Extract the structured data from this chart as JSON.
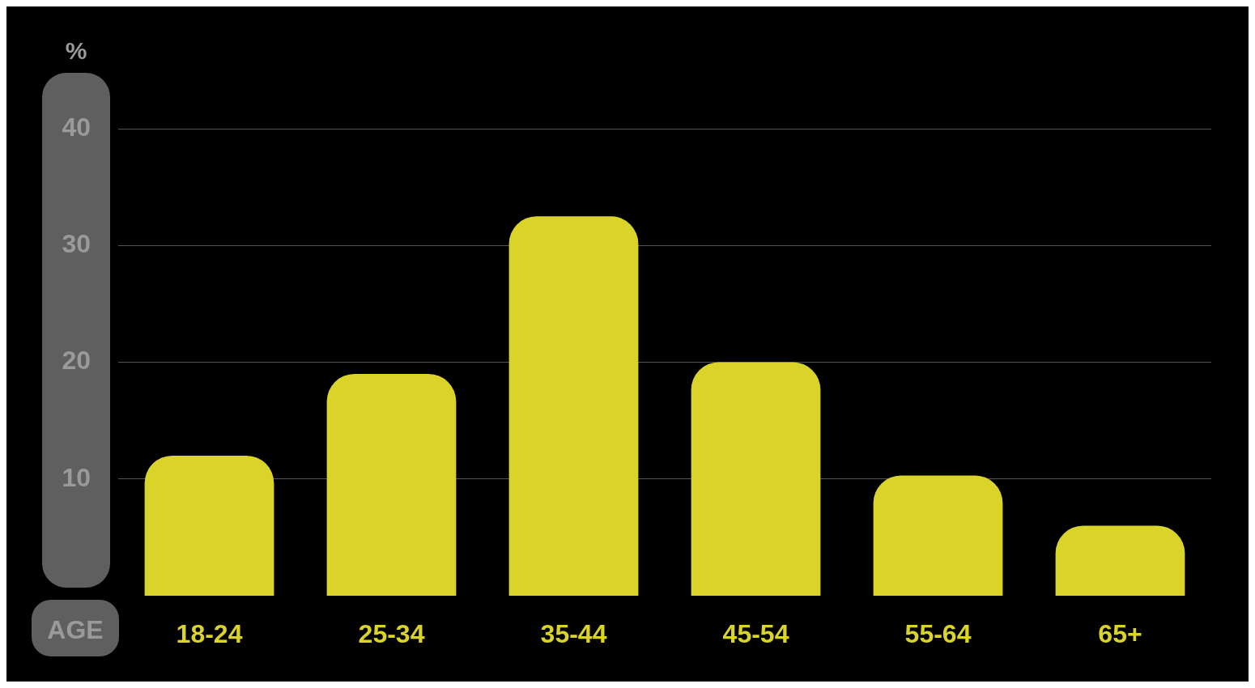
{
  "chart_data": {
    "type": "bar",
    "ylabel": "%",
    "xlabel": "AGE",
    "categories": [
      "18-24",
      "25-34",
      "35-44",
      "45-54",
      "55-64",
      "65+"
    ],
    "values": [
      12,
      19,
      32.5,
      20,
      10.3,
      6
    ],
    "color": "#d9d32a",
    "ylim": [
      0,
      40
    ],
    "yticks": [
      10,
      20,
      30,
      40
    ],
    "grid": "y"
  }
}
